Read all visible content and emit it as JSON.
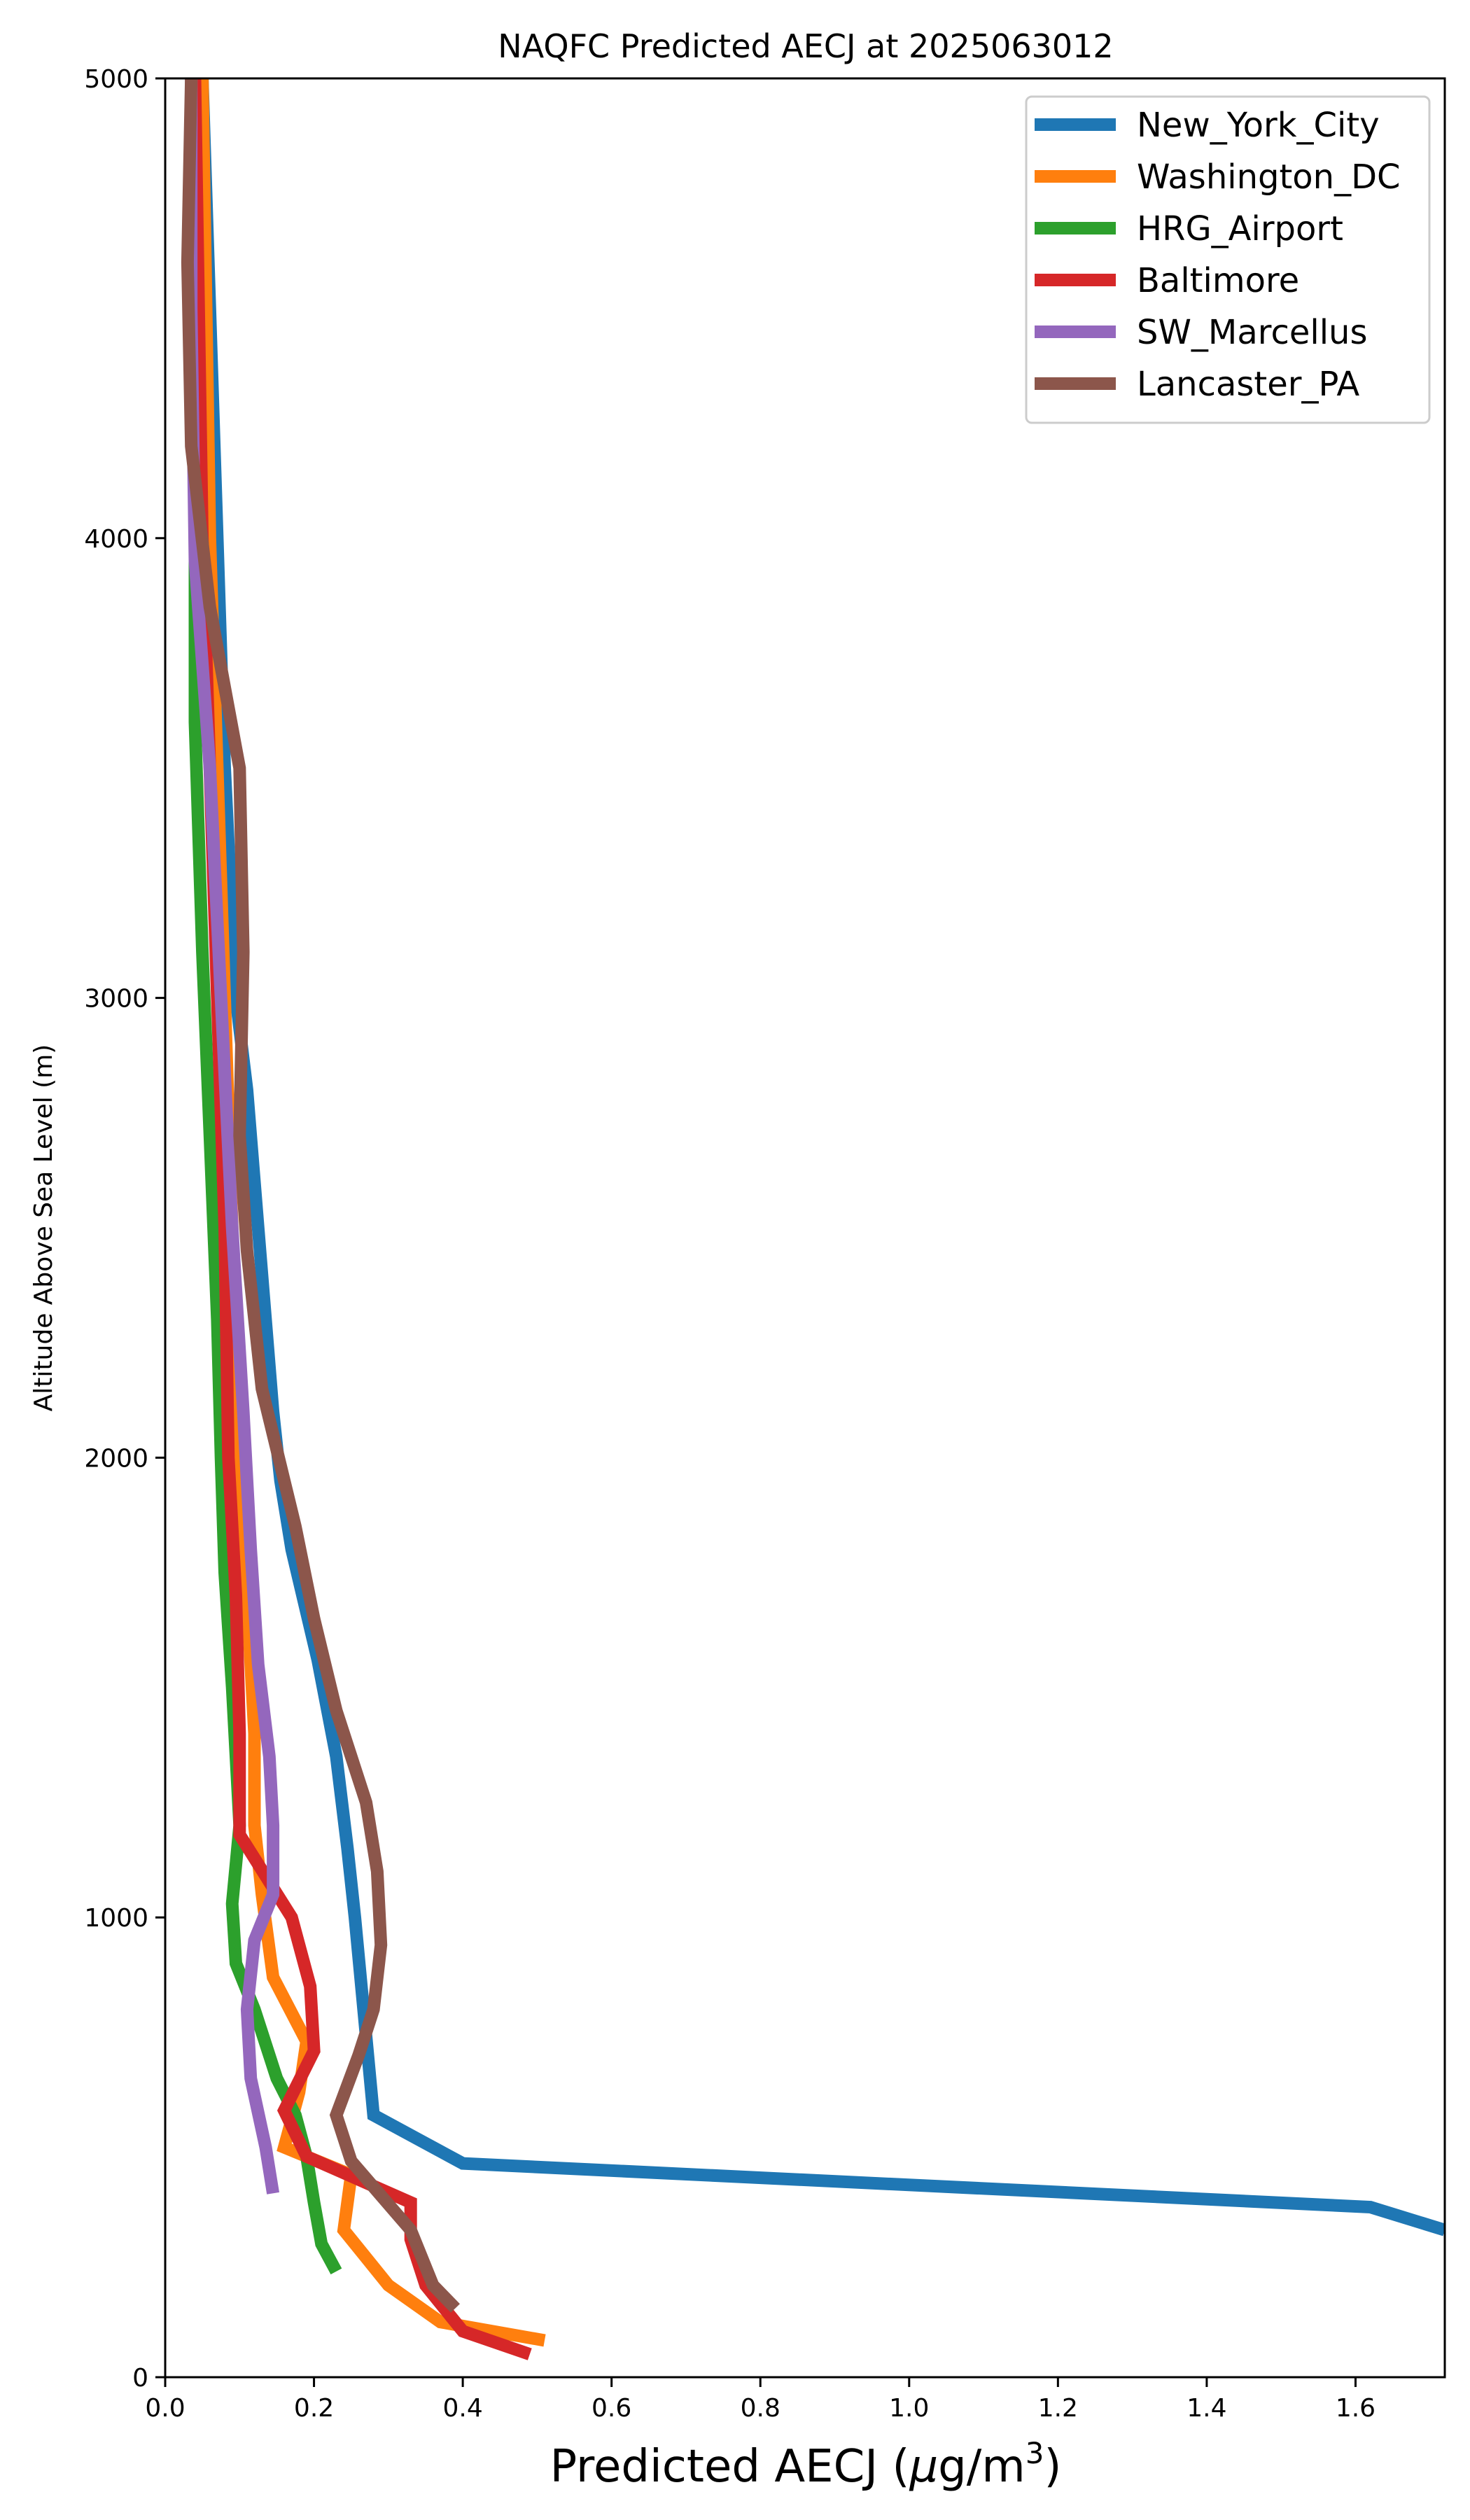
{
  "chart_data": {
    "type": "line",
    "title": "NAQFC Predicted AECJ at 2025063012",
    "xlabel_prefix": "Predicted AECJ (",
    "xlabel_mu": "μ",
    "xlabel_unit": "g/m",
    "xlabel_sup": "3",
    "xlabel_suffix": ")",
    "ylabel": "Altitude Above Sea Level (m)",
    "xlim": [
      0,
      1.72
    ],
    "ylim": [
      0,
      5000
    ],
    "xticks": [
      "0.0",
      "0.2",
      "0.4",
      "0.6",
      "0.8",
      "1.0",
      "1.2",
      "1.4",
      "1.6"
    ],
    "yticks": [
      "0",
      "1000",
      "2000",
      "3000",
      "4000",
      "5000"
    ],
    "grid": false,
    "legend_position": "top-right",
    "series": [
      {
        "name": "New_York_City",
        "color": "#1f77b4",
        "points": [
          [
            1.72,
            320
          ],
          [
            1.62,
            370
          ],
          [
            0.4,
            465
          ],
          [
            0.28,
            570
          ],
          [
            0.255,
            1000
          ],
          [
            0.245,
            1150
          ],
          [
            0.23,
            1350
          ],
          [
            0.205,
            1560
          ],
          [
            0.17,
            1800
          ],
          [
            0.155,
            1950
          ],
          [
            0.145,
            2100
          ],
          [
            0.125,
            2500
          ],
          [
            0.11,
            2800
          ],
          [
            0.095,
            3000
          ],
          [
            0.08,
            3500
          ],
          [
            0.07,
            4000
          ],
          [
            0.06,
            4500
          ],
          [
            0.05,
            5000
          ]
        ]
      },
      {
        "name": "Washington_DC",
        "color": "#ff7f0e",
        "points": [
          [
            0.51,
            80
          ],
          [
            0.37,
            120
          ],
          [
            0.3,
            200
          ],
          [
            0.24,
            320
          ],
          [
            0.25,
            440
          ],
          [
            0.16,
            500
          ],
          [
            0.18,
            620
          ],
          [
            0.19,
            730
          ],
          [
            0.145,
            870
          ],
          [
            0.13,
            1050
          ],
          [
            0.12,
            1200
          ],
          [
            0.12,
            1400
          ],
          [
            0.11,
            1700
          ],
          [
            0.1,
            2000
          ],
          [
            0.09,
            2500
          ],
          [
            0.08,
            3000
          ],
          [
            0.07,
            3500
          ],
          [
            0.06,
            4000
          ],
          [
            0.055,
            4500
          ],
          [
            0.05,
            5000
          ]
        ]
      },
      {
        "name": "HRG_Airport",
        "color": "#2ca02c",
        "points": [
          [
            0.23,
            230
          ],
          [
            0.21,
            290
          ],
          [
            0.2,
            380
          ],
          [
            0.19,
            480
          ],
          [
            0.175,
            570
          ],
          [
            0.15,
            650
          ],
          [
            0.12,
            800
          ],
          [
            0.095,
            900
          ],
          [
            0.09,
            1030
          ],
          [
            0.1,
            1200
          ],
          [
            0.09,
            1500
          ],
          [
            0.08,
            1750
          ],
          [
            0.075,
            2000
          ],
          [
            0.07,
            2300
          ],
          [
            0.06,
            2700
          ],
          [
            0.05,
            3100
          ],
          [
            0.04,
            3600
          ],
          [
            0.04,
            4000
          ],
          [
            0.04,
            4500
          ],
          [
            0.04,
            5000
          ]
        ]
      },
      {
        "name": "Baltimore",
        "color": "#d62728",
        "points": [
          [
            0.49,
            50
          ],
          [
            0.4,
            100
          ],
          [
            0.35,
            200
          ],
          [
            0.33,
            300
          ],
          [
            0.33,
            380
          ],
          [
            0.19,
            480
          ],
          [
            0.16,
            580
          ],
          [
            0.2,
            710
          ],
          [
            0.195,
            850
          ],
          [
            0.17,
            1000
          ],
          [
            0.1,
            1180
          ],
          [
            0.1,
            1400
          ],
          [
            0.095,
            1700
          ],
          [
            0.085,
            2000
          ],
          [
            0.08,
            2500
          ],
          [
            0.07,
            3000
          ],
          [
            0.06,
            3500
          ],
          [
            0.05,
            4000
          ],
          [
            0.045,
            4500
          ],
          [
            0.04,
            5000
          ]
        ]
      },
      {
        "name": "SW_Marcellus",
        "color": "#9467bd",
        "points": [
          [
            0.145,
            400
          ],
          [
            0.135,
            500
          ],
          [
            0.115,
            650
          ],
          [
            0.11,
            800
          ],
          [
            0.12,
            950
          ],
          [
            0.145,
            1050
          ],
          [
            0.145,
            1200
          ],
          [
            0.14,
            1350
          ],
          [
            0.125,
            1550
          ],
          [
            0.115,
            1800
          ],
          [
            0.105,
            2100
          ],
          [
            0.09,
            2500
          ],
          [
            0.075,
            3000
          ],
          [
            0.06,
            3500
          ],
          [
            0.04,
            3950
          ],
          [
            0.035,
            4500
          ],
          [
            0.035,
            5000
          ]
        ]
      },
      {
        "name": "Lancaster_PA",
        "color": "#8c564b",
        "points": [
          [
            0.39,
            150
          ],
          [
            0.36,
            200
          ],
          [
            0.33,
            320
          ],
          [
            0.25,
            470
          ],
          [
            0.23,
            570
          ],
          [
            0.26,
            700
          ],
          [
            0.28,
            800
          ],
          [
            0.29,
            940
          ],
          [
            0.285,
            1100
          ],
          [
            0.27,
            1250
          ],
          [
            0.23,
            1450
          ],
          [
            0.2,
            1650
          ],
          [
            0.175,
            1850
          ],
          [
            0.13,
            2150
          ],
          [
            0.11,
            2450
          ],
          [
            0.1,
            2700
          ],
          [
            0.105,
            3100
          ],
          [
            0.1,
            3500
          ],
          [
            0.06,
            3850
          ],
          [
            0.035,
            4200
          ],
          [
            0.03,
            4600
          ],
          [
            0.035,
            5000
          ]
        ]
      }
    ]
  }
}
